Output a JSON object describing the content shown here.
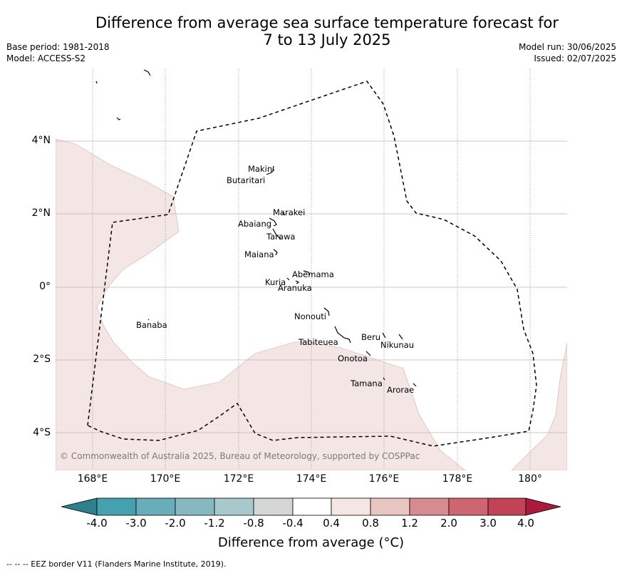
{
  "title": {
    "line1": "Difference from average sea surface temperature forecast for",
    "line2": "7 to 13 July 2025"
  },
  "meta_left": [
    "Base period: 1981-2018",
    "Model: ACCESS-S2"
  ],
  "meta_right": [
    "Model run: 30/06/2025",
    "Issued: 02/07/2025"
  ],
  "y_ticks": [
    "4°N",
    "2°N",
    "0°",
    "2°S",
    "4°S"
  ],
  "x_ticks": [
    "168°E",
    "170°E",
    "172°E",
    "174°E",
    "176°E",
    "178°E",
    "180°"
  ],
  "places": [
    "Makin",
    "Butaritari",
    "Marakei",
    "Abaiang",
    "Tarawa",
    "Maiana",
    "Abemama",
    "Kuria",
    "Aranuka",
    "Banaba",
    "Nonouti",
    "Tabiteuea",
    "Beru",
    "Nikunau",
    "Onotoa",
    "Tamana",
    "Arorae"
  ],
  "copyright": "© Commonwealth of Australia 2025, Bureau of Meteorology, supported by COSPPac",
  "colorbar": {
    "ticks": [
      "-4.0",
      "-3.0",
      "-2.0",
      "-1.2",
      "-0.8",
      "-0.4",
      "0.4",
      "0.8",
      "1.2",
      "2.0",
      "3.0",
      "4.0"
    ],
    "colors": [
      "#2f7f8c",
      "#45a0b0",
      "#68aeba",
      "#86b8c2",
      "#a8c8cc",
      "#d4d6d6",
      "#ffffff",
      "#f4e6e4",
      "#e8c5c1",
      "#d78b91",
      "#cd6670",
      "#c24355",
      "#a81b3a"
    ],
    "label": "Difference from average (°C)"
  },
  "footer": "--  --  -- EEZ border V11 (Flanders Marine Institute, 2019)."
}
